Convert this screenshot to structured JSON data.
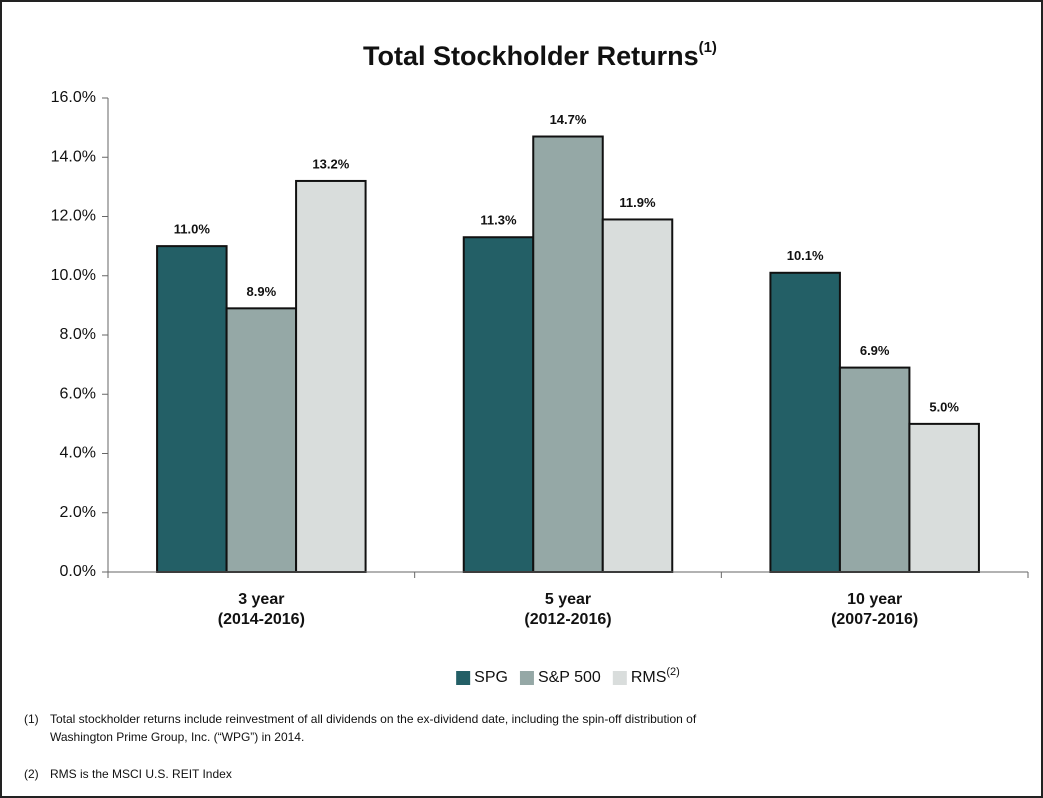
{
  "chart_data": {
    "type": "bar",
    "title": "Total Stockholder Returns",
    "title_note": "(1)",
    "categories": [
      [
        "3 year",
        "(2014-2016)"
      ],
      [
        "5 year",
        "(2012-2016)"
      ],
      [
        "10 year",
        "(2007-2016)"
      ]
    ],
    "series": [
      {
        "name": "SPG",
        "color": "#235f66",
        "values": [
          11.0,
          11.3,
          10.1
        ],
        "value_labels": [
          "11.0%",
          "11.3%",
          "10.1%"
        ]
      },
      {
        "name": "S&P 500",
        "color": "#95a8a6",
        "values": [
          8.9,
          14.7,
          6.9
        ],
        "value_labels": [
          "8.9%",
          "14.7%",
          "6.9%"
        ]
      },
      {
        "name": "RMS",
        "name_note": "(2)",
        "color": "#d9dddc",
        "values": [
          13.2,
          11.9,
          5.0
        ],
        "value_labels": [
          "13.2%",
          "11.9%",
          "5.0%"
        ]
      }
    ],
    "ylim": [
      0,
      16
    ],
    "yticks": [
      {
        "value": 0,
        "label": "0.0%"
      },
      {
        "value": 2,
        "label": "2.0%"
      },
      {
        "value": 4,
        "label": "4.0%"
      },
      {
        "value": 6,
        "label": "6.0%"
      },
      {
        "value": 8,
        "label": "8.0%"
      },
      {
        "value": 10,
        "label": "10.0%"
      },
      {
        "value": 12,
        "label": "12.0%"
      },
      {
        "value": 14,
        "label": "14.0%"
      },
      {
        "value": 16,
        "label": "16.0%"
      }
    ],
    "legend": "bottom",
    "notes": [
      {
        "marker": "(1)",
        "lines": [
          "Total stockholder returns include reinvestment of all dividends on the ex-dividend date, including the spin-off distribution of",
          "Washington Prime Group, Inc. (“WPG”) in 2014."
        ]
      },
      {
        "marker": "(2)",
        "lines": [
          "RMS is the MSCI U.S. REIT Index"
        ]
      }
    ]
  }
}
